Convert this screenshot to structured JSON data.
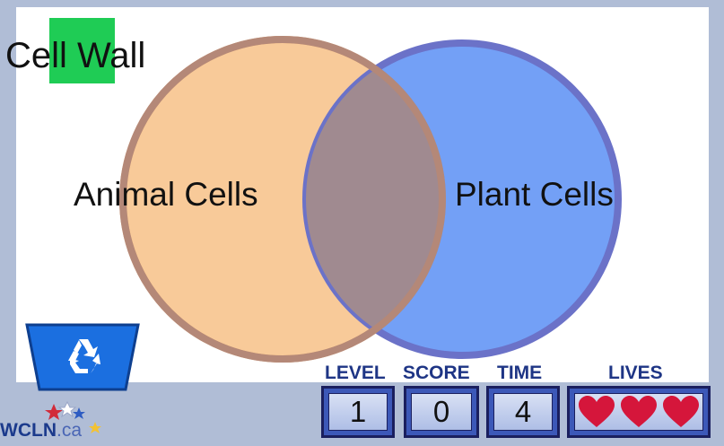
{
  "game": {
    "drag_term": "Cell Wall",
    "left_circle_label": "Animal Cells",
    "right_circle_label": "Plant Cells"
  },
  "hud": {
    "level_label": "LEVEL",
    "level_value": "1",
    "score_label": "SCORE",
    "score_value": "0",
    "time_label": "TIME",
    "time_value": "4",
    "lives_label": "LIVES",
    "lives_count": 3
  },
  "branding": {
    "logo_text": "WCLN",
    "logo_suffix": ".ca"
  },
  "colors": {
    "animal_circle": "#f6b877",
    "plant_circle": "#5b8ff5",
    "chip_highlight": "#1fcc55",
    "heart": "#d5163b",
    "bin": "#1b6fe0"
  },
  "icons": {
    "recycle_bin": "recycle-icon",
    "lives": "heart-icon"
  }
}
